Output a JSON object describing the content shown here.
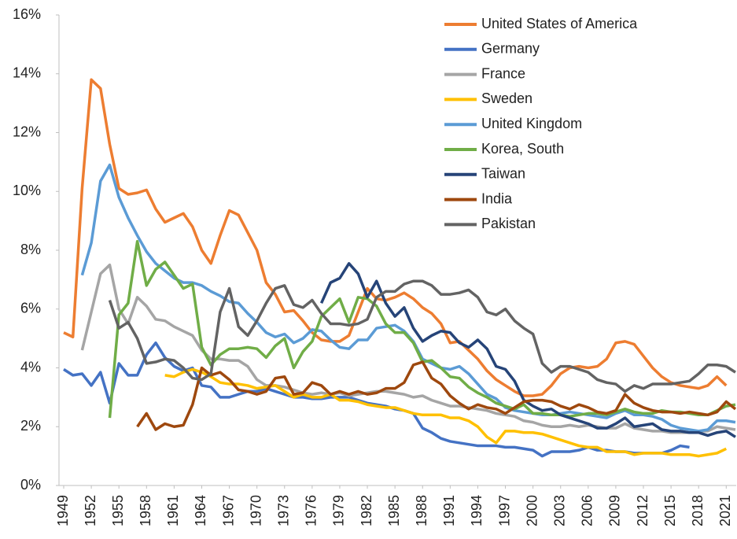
{
  "chart_data": {
    "type": "line",
    "x": [
      1949,
      1950,
      1951,
      1952,
      1953,
      1954,
      1955,
      1956,
      1957,
      1958,
      1959,
      1960,
      1961,
      1962,
      1963,
      1964,
      1965,
      1966,
      1967,
      1968,
      1969,
      1970,
      1971,
      1972,
      1973,
      1974,
      1975,
      1976,
      1977,
      1978,
      1979,
      1980,
      1981,
      1982,
      1983,
      1984,
      1985,
      1986,
      1987,
      1988,
      1989,
      1990,
      1991,
      1992,
      1993,
      1994,
      1995,
      1996,
      1997,
      1998,
      1999,
      2000,
      2001,
      2002,
      2003,
      2004,
      2005,
      2006,
      2007,
      2008,
      2009,
      2010,
      2011,
      2012,
      2013,
      2014,
      2015,
      2016,
      2017,
      2018,
      2019,
      2020,
      2021,
      2022
    ],
    "xlim": [
      1949,
      2022
    ],
    "xticks": [
      1949,
      1952,
      1955,
      1958,
      1961,
      1964,
      1967,
      1970,
      1973,
      1976,
      1979,
      1982,
      1985,
      1988,
      1991,
      1994,
      1997,
      2000,
      2003,
      2006,
      2009,
      2012,
      2015,
      2018,
      2021
    ],
    "ylim": [
      0,
      16
    ],
    "yticks": [
      {
        "value": 0,
        "label": "0%"
      },
      {
        "value": 2,
        "label": "2%"
      },
      {
        "value": 4,
        "label": "4%"
      },
      {
        "value": 6,
        "label": "6%"
      },
      {
        "value": 8,
        "label": "8%"
      },
      {
        "value": 10,
        "label": "10%"
      },
      {
        "value": 12,
        "label": "12%"
      },
      {
        "value": 14,
        "label": "14%"
      },
      {
        "value": 16,
        "label": "16%"
      }
    ],
    "grid": false,
    "legend": "upper right",
    "series": [
      {
        "name": "United States of America",
        "color": "#ed7d31",
        "values": [
          5.2,
          5.05,
          10.1,
          13.8,
          13.5,
          11.6,
          10.1,
          9.9,
          9.95,
          10.05,
          9.4,
          8.95,
          9.1,
          9.25,
          8.8,
          8.0,
          7.55,
          8.5,
          9.35,
          9.2,
          8.6,
          8.0,
          6.9,
          6.5,
          5.9,
          5.95,
          5.6,
          5.2,
          4.95,
          4.9,
          4.9,
          5.1,
          5.9,
          6.7,
          6.35,
          6.3,
          6.4,
          6.55,
          6.35,
          6.05,
          5.85,
          5.5,
          4.85,
          4.9,
          4.6,
          4.3,
          3.9,
          3.6,
          3.4,
          3.2,
          3.05,
          3.05,
          3.1,
          3.4,
          3.8,
          4.0,
          4.05,
          4.0,
          4.05,
          4.3,
          4.85,
          4.9,
          4.8,
          4.4,
          4.0,
          3.7,
          3.5,
          3.4,
          3.35,
          3.3,
          3.4,
          3.7,
          3.4,
          null
        ]
      },
      {
        "name": "Germany",
        "color": "#4472c4",
        "values": [
          3.95,
          3.75,
          3.8,
          3.4,
          3.85,
          2.8,
          4.15,
          3.75,
          3.75,
          4.45,
          4.85,
          4.35,
          4.05,
          3.9,
          4.0,
          3.4,
          3.35,
          3.0,
          3.0,
          3.1,
          3.2,
          3.2,
          3.3,
          3.2,
          3.1,
          3.0,
          3.0,
          2.95,
          2.95,
          3.0,
          3.0,
          3.0,
          2.9,
          2.8,
          2.75,
          2.7,
          2.6,
          2.55,
          2.45,
          1.95,
          1.8,
          1.6,
          1.5,
          1.45,
          1.4,
          1.35,
          1.35,
          1.35,
          1.3,
          1.3,
          1.25,
          1.2,
          1.0,
          1.15,
          1.15,
          1.15,
          1.2,
          1.3,
          1.2,
          1.2,
          1.15,
          1.15,
          1.1,
          1.1,
          1.1,
          1.1,
          1.2,
          1.35,
          1.3,
          null,
          null,
          null,
          null,
          null
        ]
      },
      {
        "name": "France",
        "color": "#a5a5a5",
        "values": [
          null,
          null,
          4.6,
          5.9,
          7.2,
          7.5,
          6.0,
          5.5,
          6.4,
          6.1,
          5.65,
          5.6,
          5.4,
          5.25,
          5.1,
          4.6,
          4.3,
          4.3,
          4.25,
          4.25,
          4.05,
          3.6,
          3.4,
          3.4,
          3.35,
          3.25,
          3.15,
          3.1,
          3.15,
          3.1,
          3.15,
          3.05,
          3.1,
          3.15,
          3.2,
          3.2,
          3.15,
          3.1,
          3.0,
          3.05,
          2.9,
          2.8,
          2.7,
          2.7,
          2.65,
          2.6,
          2.55,
          2.45,
          2.4,
          2.35,
          2.2,
          2.15,
          2.05,
          2.0,
          2.0,
          2.05,
          2.0,
          2.05,
          2.0,
          1.95,
          1.95,
          2.1,
          1.95,
          1.9,
          1.85,
          1.85,
          1.8,
          1.8,
          1.8,
          1.85,
          1.85,
          2.0,
          1.95,
          1.9
        ]
      },
      {
        "name": "Sweden",
        "color": "#ffc000",
        "values": [
          null,
          null,
          null,
          null,
          null,
          null,
          null,
          null,
          null,
          null,
          null,
          3.75,
          3.7,
          3.85,
          3.95,
          3.85,
          3.7,
          3.5,
          3.45,
          3.45,
          3.4,
          3.3,
          3.35,
          3.4,
          3.2,
          3.0,
          3.1,
          3.0,
          3.0,
          3.1,
          2.9,
          2.9,
          2.85,
          2.75,
          2.7,
          2.65,
          2.65,
          2.55,
          2.45,
          2.4,
          2.4,
          2.4,
          2.3,
          2.3,
          2.2,
          2.0,
          1.65,
          1.45,
          1.85,
          1.85,
          1.8,
          1.8,
          1.75,
          1.65,
          1.55,
          1.45,
          1.35,
          1.3,
          1.3,
          1.15,
          1.15,
          1.15,
          1.05,
          1.1,
          1.1,
          1.1,
          1.05,
          1.05,
          1.05,
          1.0,
          1.05,
          1.1,
          1.25,
          null
        ]
      },
      {
        "name": "United Kingdom",
        "color": "#5b9bd5",
        "values": [
          null,
          null,
          7.15,
          8.25,
          10.35,
          10.9,
          9.8,
          9.1,
          8.5,
          7.95,
          7.55,
          7.3,
          7.05,
          6.9,
          6.9,
          6.8,
          6.6,
          6.45,
          6.25,
          6.2,
          5.85,
          5.55,
          5.2,
          5.05,
          5.15,
          4.85,
          5.0,
          5.3,
          5.25,
          4.95,
          4.7,
          4.65,
          4.95,
          4.95,
          5.35,
          5.4,
          5.45,
          5.25,
          4.9,
          4.3,
          4.15,
          4.0,
          3.95,
          4.05,
          3.8,
          3.45,
          3.1,
          2.95,
          2.65,
          2.55,
          2.5,
          2.45,
          2.4,
          2.4,
          2.45,
          2.5,
          2.45,
          2.4,
          2.35,
          2.3,
          2.45,
          2.55,
          2.4,
          2.4,
          2.35,
          2.25,
          2.05,
          1.95,
          1.9,
          1.85,
          1.9,
          2.2,
          2.2,
          2.15
        ]
      },
      {
        "name": "Korea, South",
        "color": "#70ad47",
        "values": [
          null,
          null,
          null,
          null,
          null,
          2.3,
          5.8,
          6.2,
          8.3,
          6.8,
          7.35,
          7.6,
          7.15,
          6.7,
          6.85,
          4.7,
          4.1,
          4.45,
          4.65,
          4.65,
          4.7,
          4.65,
          4.35,
          4.75,
          5.0,
          4.0,
          4.55,
          4.9,
          5.75,
          6.05,
          6.35,
          5.55,
          6.4,
          6.35,
          6.1,
          5.5,
          5.2,
          5.2,
          4.85,
          4.2,
          4.25,
          4.0,
          3.7,
          3.65,
          3.35,
          3.15,
          3.0,
          2.8,
          2.7,
          2.6,
          2.75,
          2.45,
          2.45,
          2.4,
          2.4,
          2.35,
          2.4,
          2.45,
          2.45,
          2.4,
          2.5,
          2.6,
          2.5,
          2.45,
          2.45,
          2.55,
          2.5,
          2.5,
          2.45,
          2.4,
          2.4,
          2.55,
          2.7,
          2.75
        ]
      },
      {
        "name": "Taiwan",
        "color": "#264478",
        "values": [
          null,
          null,
          null,
          null,
          null,
          null,
          null,
          null,
          null,
          null,
          null,
          null,
          null,
          null,
          null,
          null,
          null,
          null,
          null,
          null,
          null,
          null,
          null,
          null,
          null,
          null,
          null,
          null,
          6.2,
          6.9,
          7.05,
          7.55,
          7.2,
          6.4,
          6.95,
          6.2,
          5.75,
          6.05,
          5.35,
          4.9,
          5.1,
          5.25,
          5.2,
          4.85,
          4.7,
          4.95,
          4.65,
          4.05,
          3.95,
          3.55,
          2.9,
          2.7,
          2.55,
          2.6,
          2.4,
          2.3,
          2.2,
          2.1,
          1.95,
          1.95,
          2.1,
          2.3,
          2.0,
          2.05,
          2.1,
          1.9,
          1.85,
          1.85,
          1.8,
          1.8,
          1.7,
          1.8,
          1.85,
          1.65
        ]
      },
      {
        "name": "India",
        "color": "#9e480e",
        "values": [
          null,
          null,
          null,
          null,
          null,
          null,
          null,
          null,
          2.0,
          2.45,
          1.9,
          2.1,
          2.0,
          2.05,
          2.75,
          4.0,
          3.75,
          3.85,
          3.6,
          3.25,
          3.2,
          3.1,
          3.2,
          3.65,
          3.7,
          3.1,
          3.15,
          3.5,
          3.4,
          3.1,
          3.2,
          3.1,
          3.2,
          3.1,
          3.15,
          3.3,
          3.3,
          3.5,
          4.1,
          4.2,
          3.65,
          3.45,
          3.05,
          2.8,
          2.6,
          2.75,
          2.65,
          2.6,
          2.45,
          2.65,
          2.85,
          2.9,
          2.9,
          2.85,
          2.7,
          2.6,
          2.75,
          2.65,
          2.5,
          2.45,
          2.55,
          3.1,
          2.8,
          2.65,
          2.55,
          2.5,
          2.5,
          2.45,
          2.5,
          2.45,
          2.4,
          2.5,
          2.85,
          2.6
        ]
      },
      {
        "name": "Pakistan",
        "color": "#636363",
        "values": [
          null,
          null,
          null,
          null,
          null,
          6.3,
          5.35,
          5.55,
          5.0,
          4.15,
          4.2,
          4.3,
          4.25,
          4.0,
          3.65,
          3.6,
          3.8,
          5.9,
          6.7,
          5.4,
          5.1,
          5.6,
          6.2,
          6.7,
          6.8,
          6.15,
          6.05,
          6.3,
          5.85,
          5.5,
          5.5,
          5.45,
          5.5,
          5.65,
          6.4,
          6.6,
          6.6,
          6.85,
          6.95,
          6.95,
          6.8,
          6.5,
          6.5,
          6.55,
          6.65,
          6.4,
          5.9,
          5.8,
          6.0,
          5.6,
          5.35,
          5.15,
          4.15,
          3.85,
          4.05,
          4.05,
          3.95,
          3.85,
          3.6,
          3.5,
          3.45,
          3.2,
          3.4,
          3.3,
          3.45,
          3.45,
          3.45,
          3.5,
          3.55,
          3.8,
          4.1,
          4.1,
          4.05,
          3.85
        ]
      }
    ]
  }
}
